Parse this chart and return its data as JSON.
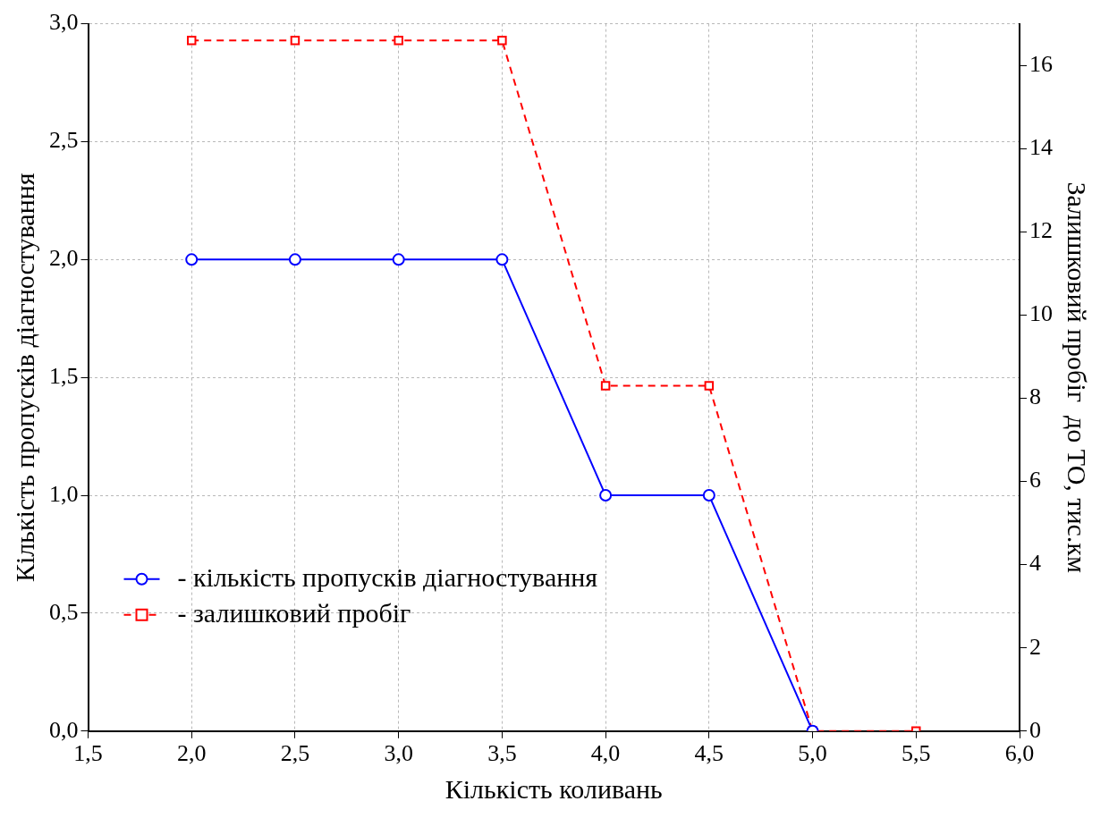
{
  "chart_data": {
    "type": "line",
    "x": [
      2.0,
      2.5,
      3.0,
      3.5,
      4.0,
      4.5,
      5.0,
      5.5
    ],
    "xlabel": "Кількість коливань",
    "ylabel": "Кількість пропусків діагностування",
    "y2label": "Залишковий пробіг  до ТО, тис.км",
    "series": [
      {
        "name": "- кількість пропусків діагностування",
        "color": "#0000ff",
        "values": [
          2,
          2,
          2,
          2,
          1,
          1,
          0,
          null
        ],
        "marker": "circle",
        "line_style": "solid"
      },
      {
        "name": "- залишковий пробіг",
        "color": "#ff0000",
        "values": [
          16.6,
          16.6,
          16.6,
          16.6,
          8.3,
          8.3,
          0,
          0
        ],
        "marker": "square",
        "line_style": "dashed",
        "axis": "y2"
      }
    ],
    "xlim": [
      1.5,
      6.0
    ],
    "xticks": [
      {
        "value": 1.5,
        "label": "1,5"
      },
      {
        "value": 2,
        "label": "2,0"
      },
      {
        "value": 2.5,
        "label": "2,5"
      },
      {
        "value": 3,
        "label": "3,0"
      },
      {
        "value": 3.5,
        "label": "3,5"
      },
      {
        "value": 4,
        "label": "4,0"
      },
      {
        "value": 4.5,
        "label": "4,5"
      },
      {
        "value": 5,
        "label": "5,0"
      },
      {
        "value": 5.5,
        "label": "5,5"
      },
      {
        "value": 6,
        "label": "6,0"
      }
    ],
    "ylim": [
      0,
      3.0
    ],
    "yticks": [
      {
        "value": 0,
        "label": "0,0"
      },
      {
        "value": 0.5,
        "label": "0,5"
      },
      {
        "value": 1,
        "label": "1,0"
      },
      {
        "value": 1.5,
        "label": "1,5"
      },
      {
        "value": 2,
        "label": "2,0"
      },
      {
        "value": 2.5,
        "label": "2,5"
      },
      {
        "value": 3,
        "label": "3,0"
      }
    ],
    "y2lim": [
      0,
      17
    ],
    "y2ticks": [
      0,
      2,
      4,
      6,
      8,
      10,
      12,
      14,
      16
    ],
    "grid": true,
    "legend": "bottom left"
  }
}
